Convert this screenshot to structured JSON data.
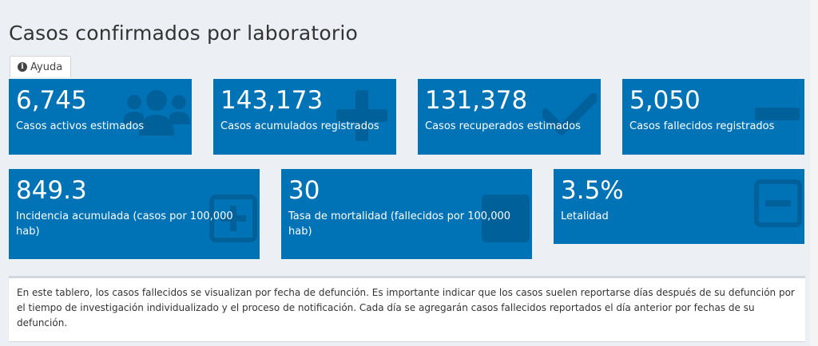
{
  "title": "Casos confirmados por laboratorio",
  "help": {
    "label": "Ayuda",
    "icon": "info-icon"
  },
  "colors": {
    "box_bg": "#0073b7",
    "page_bg": "#ecf0f5",
    "icon_shade": "#00609a"
  },
  "stats": [
    {
      "value": "6,745",
      "label": "Casos activos estimados",
      "icon": "users-icon"
    },
    {
      "value": "143,173",
      "label": "Casos acumulados registrados",
      "icon": "plus-icon"
    },
    {
      "value": "131,378",
      "label": "Casos recuperados estimados",
      "icon": "check-icon"
    },
    {
      "value": "5,050",
      "label": "Casos fallecidos registrados",
      "icon": "minus-icon"
    },
    {
      "value": "849.3",
      "label": "Incidencia acumulada (casos por 100,000 hab)",
      "icon": "plus-square-icon"
    },
    {
      "value": "30",
      "label": "Tasa de mortalidad (fallecidos por 100,000 hab)",
      "icon": "square-icon"
    },
    {
      "value": "3.5%",
      "label": "Letalidad",
      "icon": "minus-square-icon"
    }
  ],
  "note": "En este tablero, los casos fallecidos se visualizan por fecha de defunción. Es importante indicar que los casos suelen reportarse días después de su defunción por el tiempo de investigación individualizado y el proceso de notificación. Cada día se agregarán casos fallecidos reportados el día anterior por fechas de su defunción."
}
